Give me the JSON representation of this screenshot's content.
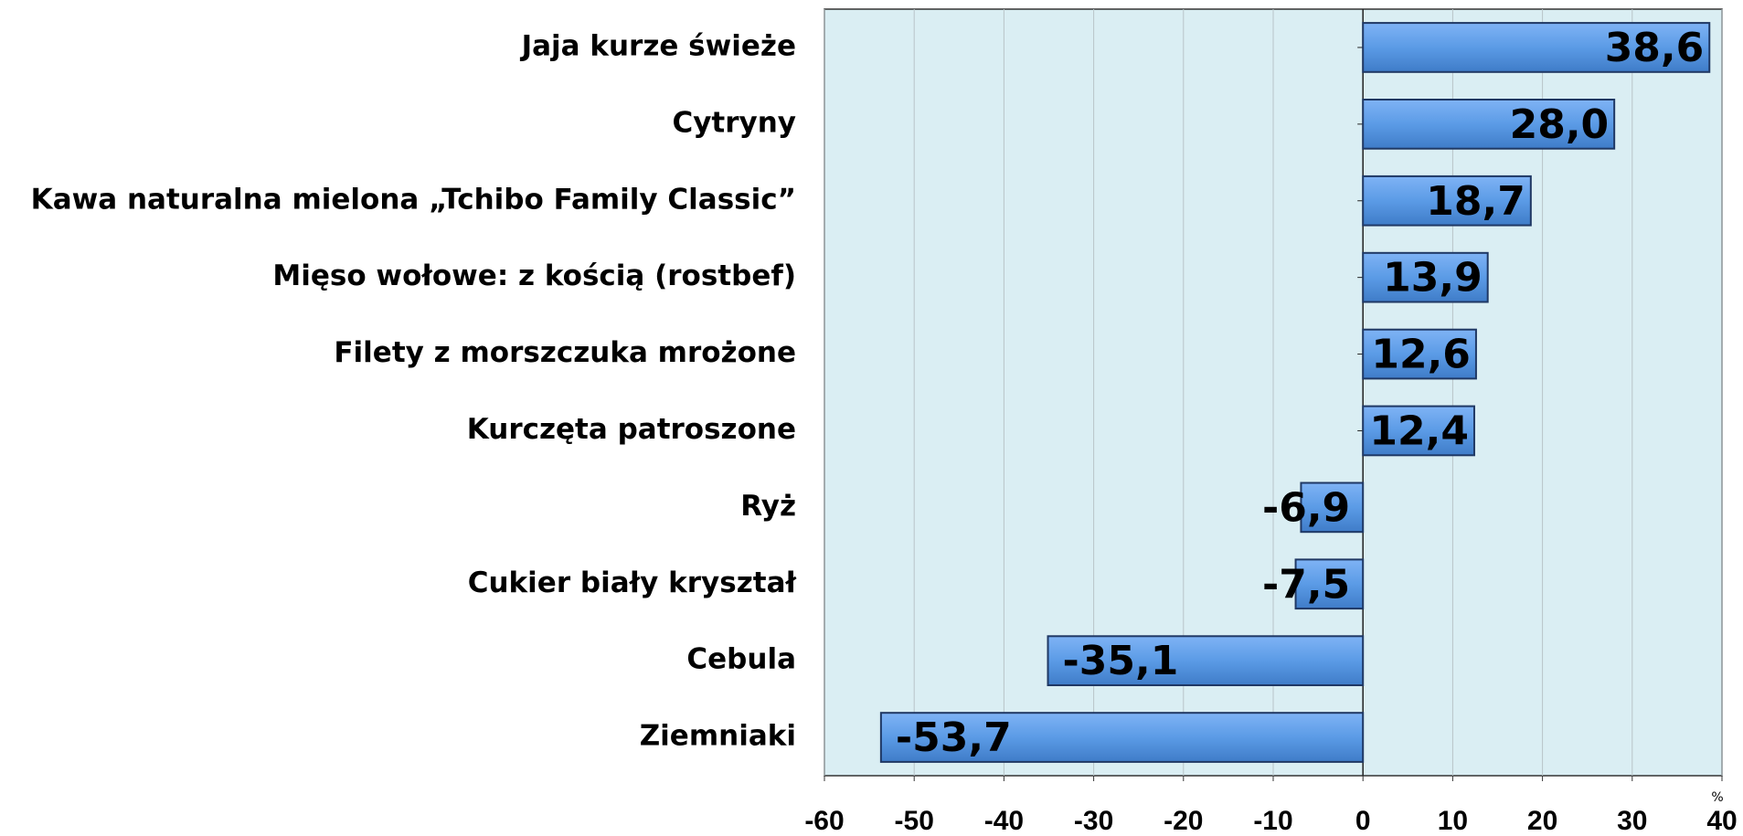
{
  "chart_data": {
    "type": "barh",
    "categories": [
      "Jaja kurze świeże",
      "Cytryny",
      "Kawa naturalna mielona „Tchibo Family Classic”",
      "Mięso wołowe: z kością (rostbef)",
      "Filety z morszczuka mrożone",
      "Kurczęta patroszone",
      "Ryż",
      "Cukier biały kryształ",
      "Cebula",
      "Ziemniaki"
    ],
    "values": [
      38.6,
      28.0,
      18.7,
      13.9,
      12.6,
      12.4,
      -6.9,
      -7.5,
      -35.1,
      -53.7
    ],
    "value_labels": [
      "38,6",
      "28,0",
      "18,7",
      "13,9",
      "12,6",
      "12,4",
      "-6,9",
      "-7,5",
      "-35,1",
      "-53,7"
    ],
    "color": "#5b9be6",
    "xlim": [
      -60,
      40
    ],
    "xticks": [
      -60,
      -50,
      -40,
      -30,
      -20,
      -10,
      0,
      10,
      20,
      30,
      40
    ],
    "x_unit": "%",
    "grid": true
  }
}
